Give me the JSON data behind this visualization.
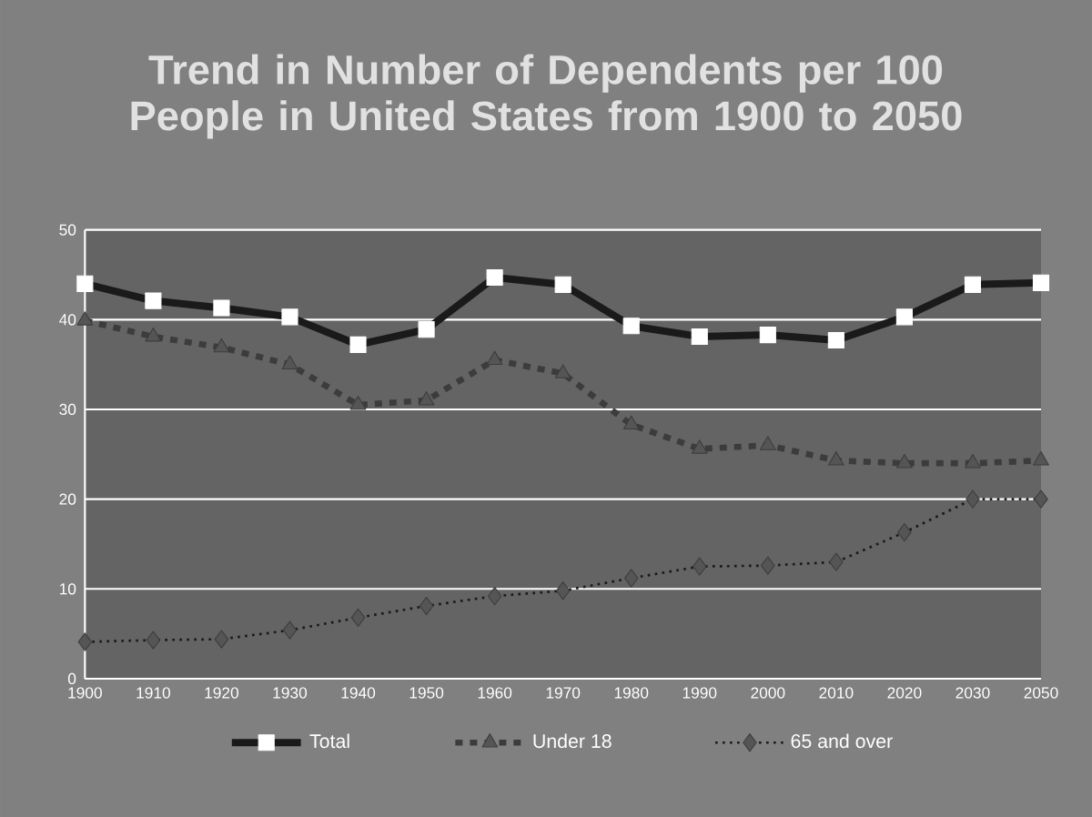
{
  "chart_data": {
    "type": "line",
    "title": "Trend in Number of Dependents per 100 People in United States from 1900 to 2050",
    "categories": [
      "1900",
      "1910",
      "1920",
      "1930",
      "1940",
      "1950",
      "1960",
      "1970",
      "1980",
      "1990",
      "2000",
      "2010",
      "2020",
      "2030",
      "2050"
    ],
    "series": [
      {
        "name": "Total",
        "color": "#1a1a1a",
        "marker": "square",
        "line_style": "solid",
        "values": [
          44,
          42.1,
          41.3,
          40.3,
          37.2,
          38.9,
          44.7,
          43.9,
          39.3,
          38.1,
          38.3,
          37.7,
          40.3,
          43.9,
          44.1
        ]
      },
      {
        "name": "Under 18",
        "color": "#3c3c3c",
        "marker": "triangle",
        "line_style": "dashed",
        "values": [
          39.9,
          38.1,
          36.9,
          35,
          30.5,
          31,
          35.5,
          34,
          28.3,
          25.6,
          26,
          24.3,
          24,
          24,
          24.3
        ]
      },
      {
        "name": "65 and over",
        "color": "#1a1a1a",
        "marker": "diamond",
        "line_style": "dotted",
        "values": [
          4.1,
          4.3,
          4.4,
          5.4,
          6.8,
          8.1,
          9.2,
          9.8,
          11.2,
          12.5,
          12.6,
          13,
          16.3,
          20,
          20
        ]
      }
    ],
    "ylim": [
      0,
      50
    ],
    "yticks": [
      0,
      10,
      20,
      30,
      40,
      50
    ],
    "grid": "y",
    "legend": "bottom"
  }
}
